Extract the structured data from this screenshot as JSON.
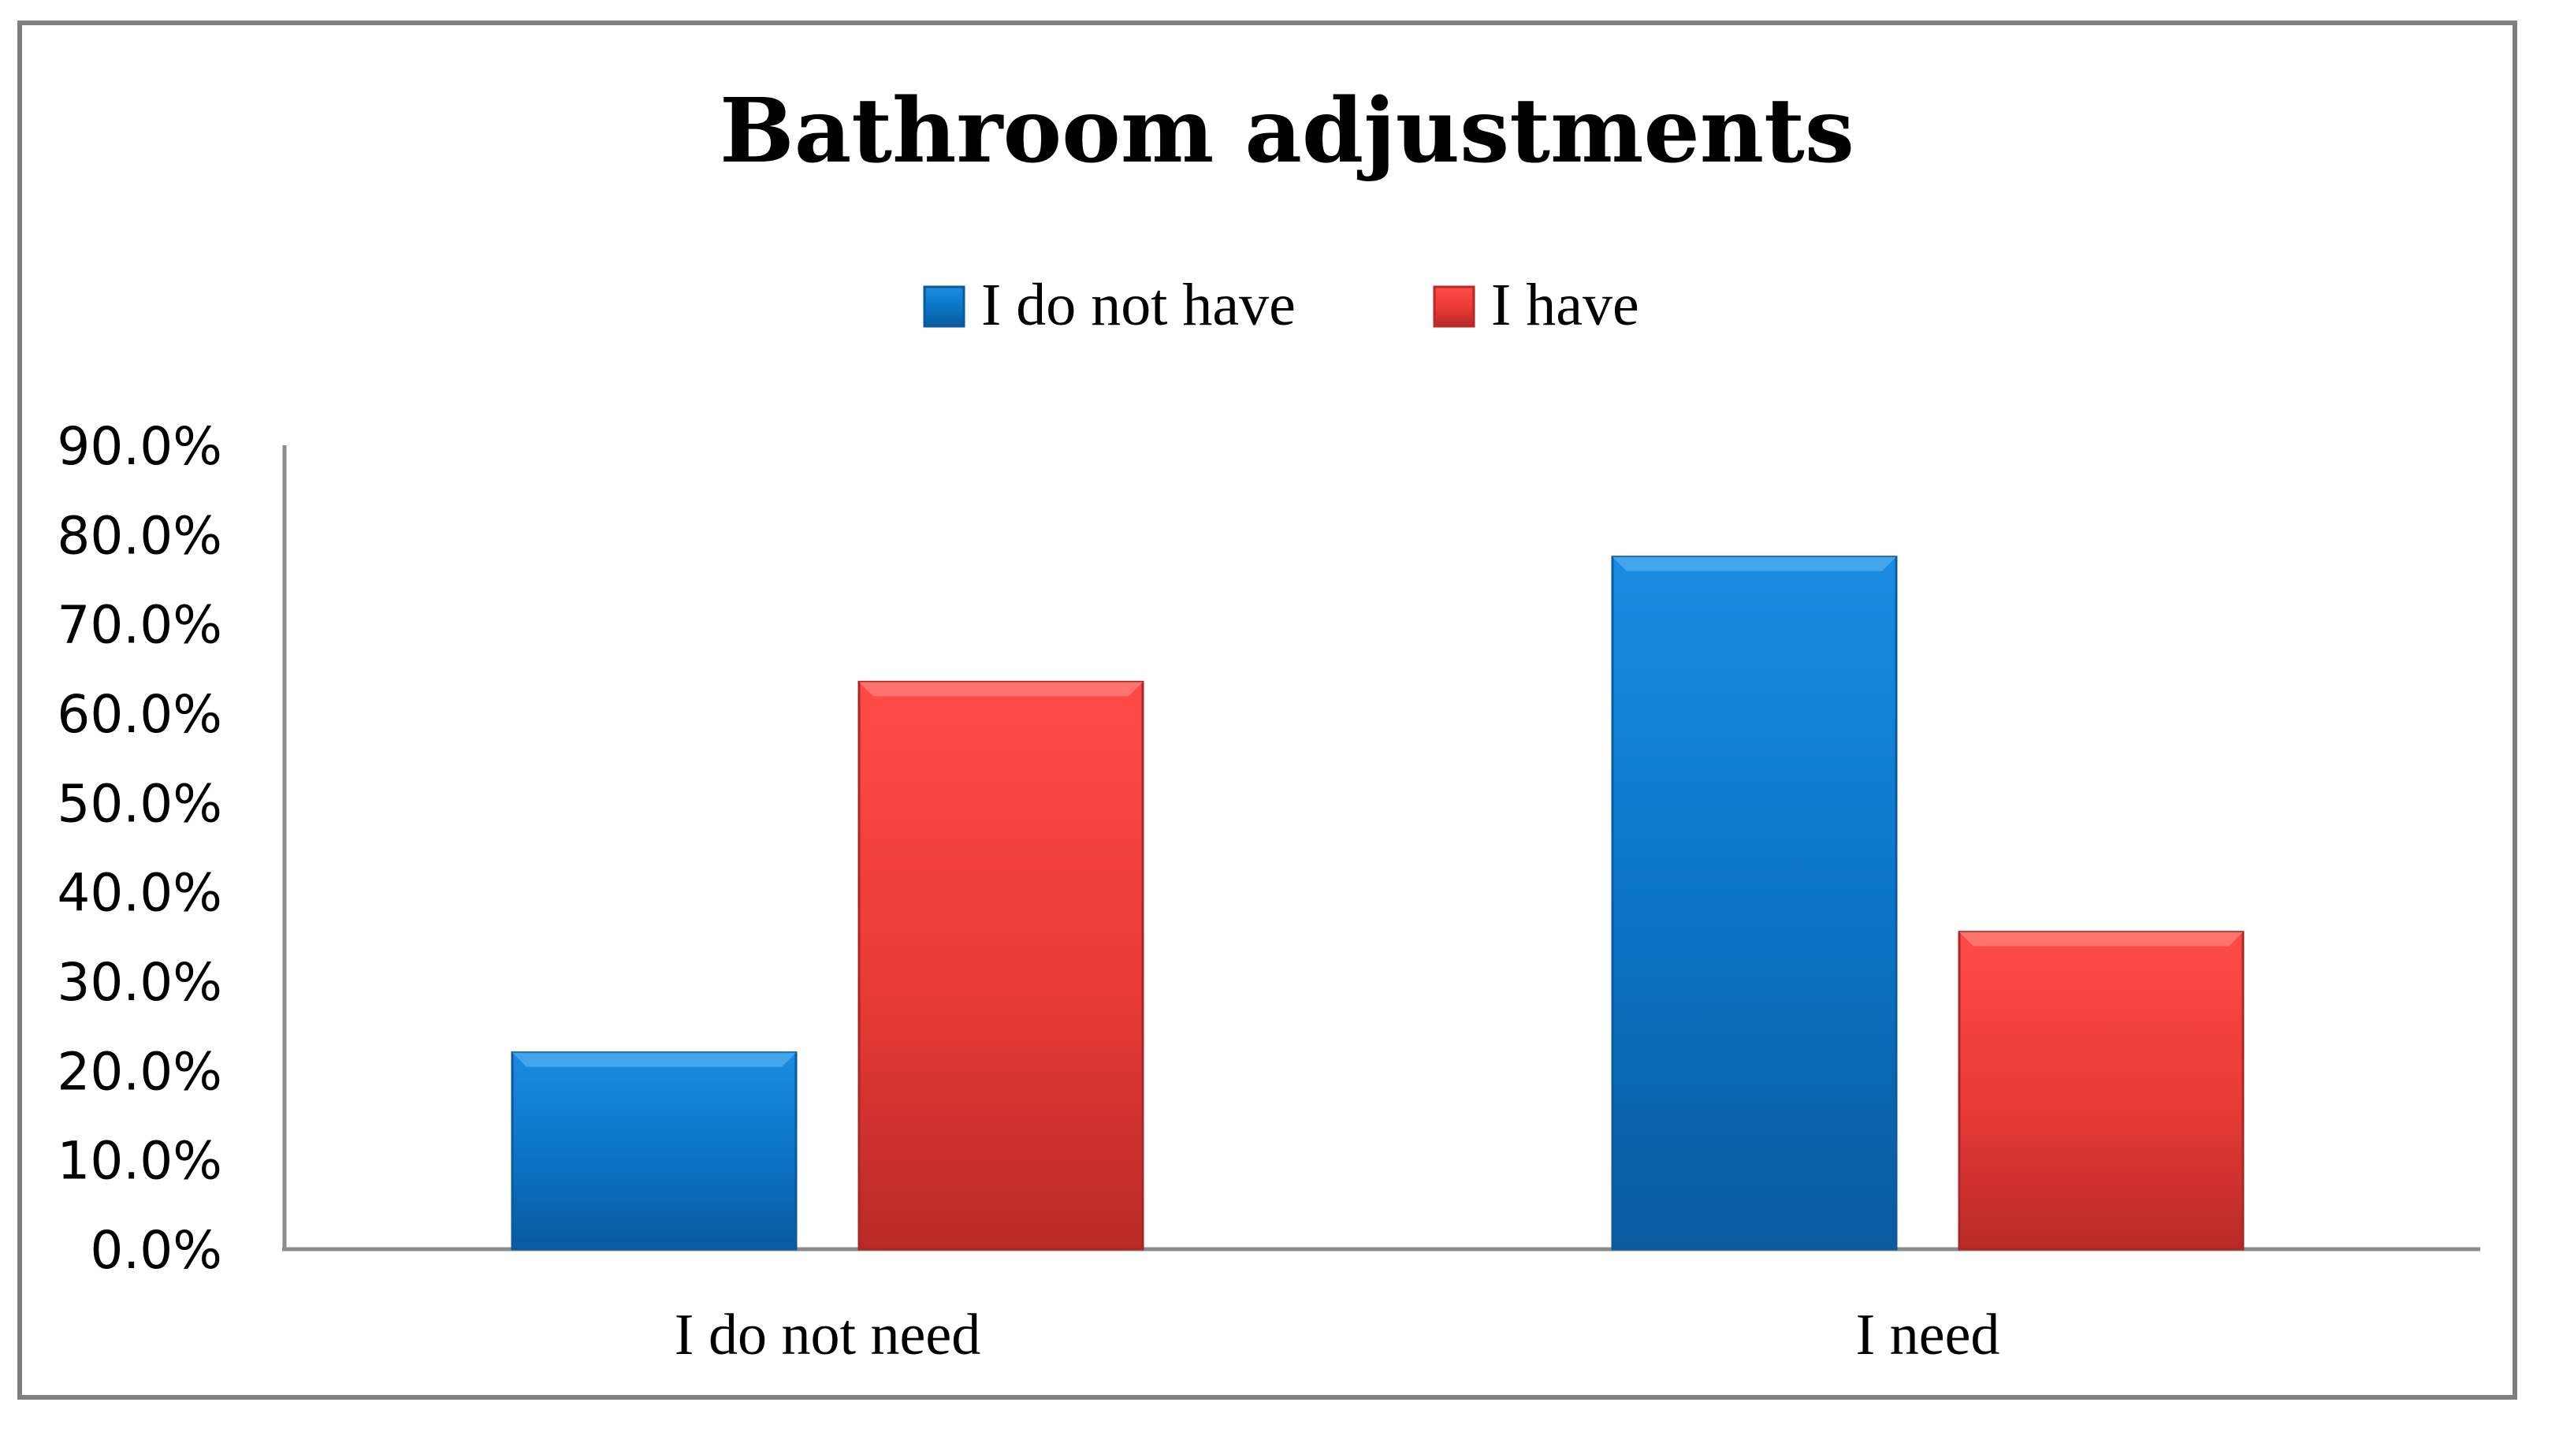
{
  "chart_data": {
    "type": "bar",
    "title": "Bathroom adjustments",
    "categories": [
      "I do not need",
      "I need"
    ],
    "series": [
      {
        "name": "I do not have",
        "color": "#0070c0",
        "values": [
          22.0,
          77.5
        ]
      },
      {
        "name": "I have",
        "color": "#e8302e",
        "values": [
          63.5,
          35.5
        ]
      }
    ],
    "ylim": [
      0,
      90
    ],
    "yticks": [
      "0.0%",
      "10.0%",
      "20.0%",
      "30.0%",
      "40.0%",
      "50.0%",
      "60.0%",
      "70.0%",
      "80.0%",
      "90.0%"
    ],
    "legend_position": "top",
    "grid": false
  }
}
